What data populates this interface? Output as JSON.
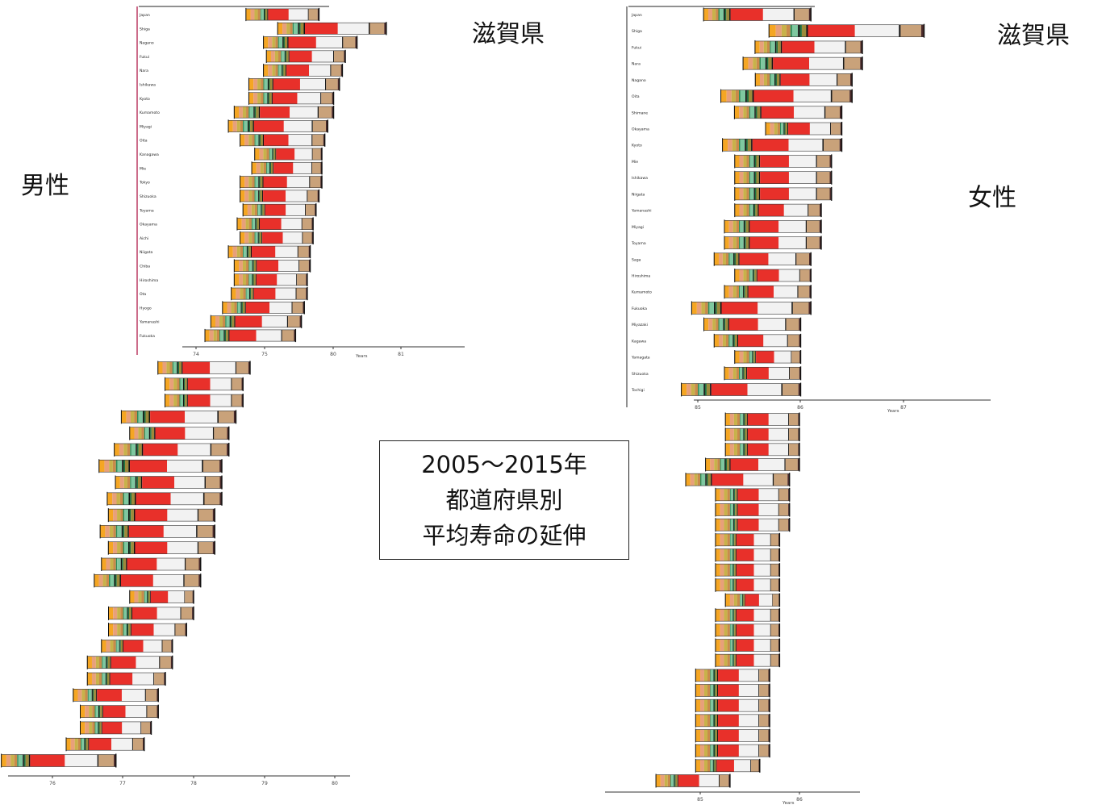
{
  "labels": {
    "male": "男性",
    "female": "女性",
    "shiga_male": "滋賀県",
    "shiga_female": "滋賀県",
    "title_line1": "2005〜2015年",
    "title_line2": "都道府県別",
    "title_line3": "平均寿命の延伸"
  },
  "colors": {
    "contributions": [
      "#f5a623",
      "#e8a07a",
      "#c8b24a",
      "#9c8a3a",
      "#c98a4a",
      "#2e8b57",
      "#1f6f3f",
      "#7fc8a0",
      "#111111",
      "#e8302a",
      "#f2f2f2",
      "#1a1a1a",
      "#c9a27a",
      "#4a2a2a"
    ],
    "axis": "#333333",
    "divider": "#b01c4a"
  },
  "chart_data": [
    {
      "type": "bar",
      "name_hint": "male-top",
      "xlabel": "Years",
      "xticks": [
        "74",
        "75",
        "80",
        "81"
      ],
      "xlim": [
        73.6,
        81.8
      ],
      "categories": [
        "Japan",
        "Shiga",
        "Nagano",
        "Fukui",
        "Nara",
        "Ishikawa",
        "Kyoto",
        "Kumamoto",
        "Miyagi",
        "Oita",
        "Kanagawa",
        "Mie",
        "Tokyo",
        "Shizuoka",
        "Toyama",
        "Okayama",
        "Aichi",
        "Niigata",
        "Chiba",
        "Hiroshima",
        "Ota",
        "Hyogo",
        "Yamanashi",
        "Fukuoka"
      ],
      "start": [
        76.2,
        77.3,
        76.8,
        76.9,
        76.8,
        76.3,
        76.3,
        75.8,
        75.6,
        76.0,
        76.5,
        76.4,
        76.0,
        76.0,
        76.1,
        75.9,
        76.0,
        75.6,
        75.8,
        75.8,
        75.7,
        75.4,
        75.0,
        74.8
      ],
      "end": [
        78.2,
        80.5,
        79.5,
        79.1,
        79.0,
        78.9,
        78.7,
        78.7,
        78.5,
        78.4,
        78.3,
        78.3,
        78.3,
        78.2,
        78.1,
        78.0,
        78.0,
        77.9,
        77.9,
        77.8,
        77.8,
        77.7,
        77.6,
        77.4
      ]
    },
    {
      "type": "bar",
      "name_hint": "male-bottom",
      "xlabel": "",
      "xticks": [
        "76",
        "77",
        "78",
        "79",
        "80"
      ],
      "xlim": [
        75.6,
        80.4
      ],
      "categories": [],
      "start": [
        77.7,
        77.8,
        77.8,
        77.2,
        77.3,
        77.1,
        76.9,
        77.1,
        77.0,
        77.0,
        76.9,
        77.0,
        76.9,
        76.8,
        77.3,
        77.0,
        77.0,
        76.9,
        76.7,
        76.7,
        76.5,
        76.6,
        76.6,
        76.4,
        75.5
      ],
      "end": [
        78.8,
        78.7,
        78.7,
        78.6,
        78.5,
        78.5,
        78.4,
        78.4,
        78.4,
        78.3,
        78.3,
        78.3,
        78.1,
        78.1,
        78.0,
        78.0,
        77.9,
        77.7,
        77.7,
        77.6,
        77.5,
        77.5,
        77.4,
        77.3,
        76.9
      ]
    },
    {
      "type": "bar",
      "name_hint": "female-top",
      "xlabel": "Years",
      "xticks": [
        "85",
        "86",
        "87"
      ],
      "xlim": [
        84.9,
        87.8
      ],
      "categories": [
        "Japan",
        "Shiga",
        "Fukui",
        "Nara",
        "Nagano",
        "Oita",
        "Shimane",
        "Okayama",
        "Kyoto",
        "Mie",
        "Ishikawa",
        "Niigata",
        "Yamanashi",
        "Miyagi",
        "Toyama",
        "Saga",
        "Hiroshima",
        "Kumamoto",
        "Fukuoka",
        "Miyazaki",
        "Kagawa",
        "Yamagata",
        "Shizuoka",
        "Tochigi"
      ],
      "start": [
        85.2,
        85.9,
        85.7,
        85.6,
        85.7,
        85.4,
        85.5,
        85.8,
        85.4,
        85.5,
        85.5,
        85.5,
        85.5,
        85.4,
        85.4,
        85.3,
        85.5,
        85.4,
        85.1,
        85.2,
        85.3,
        85.5,
        85.4,
        85.0
      ],
      "end": [
        86.1,
        87.2,
        86.6,
        86.6,
        86.5,
        86.5,
        86.4,
        86.4,
        86.4,
        86.3,
        86.3,
        86.3,
        86.2,
        86.2,
        86.2,
        86.1,
        86.1,
        86.1,
        86.1,
        86.0,
        86.0,
        86.0,
        86.0,
        86.0
      ]
    },
    {
      "type": "bar",
      "name_hint": "female-bottom",
      "xlabel": "Years",
      "xticks": [
        "85",
        "86"
      ],
      "xlim": [
        84.7,
        86.6
      ],
      "categories": [],
      "start": [
        85.4,
        85.4,
        85.4,
        85.2,
        85.0,
        85.3,
        85.3,
        85.3,
        85.3,
        85.3,
        85.3,
        85.3,
        85.4,
        85.3,
        85.3,
        85.3,
        85.3,
        85.1,
        85.1,
        85.1,
        85.1,
        85.1,
        85.1,
        85.1,
        84.7
      ],
      "end": [
        86.0,
        86.0,
        86.0,
        86.0,
        85.9,
        85.9,
        85.9,
        85.9,
        85.8,
        85.8,
        85.8,
        85.8,
        85.8,
        85.8,
        85.8,
        85.8,
        85.8,
        85.7,
        85.7,
        85.7,
        85.7,
        85.7,
        85.7,
        85.6,
        85.3
      ]
    }
  ]
}
